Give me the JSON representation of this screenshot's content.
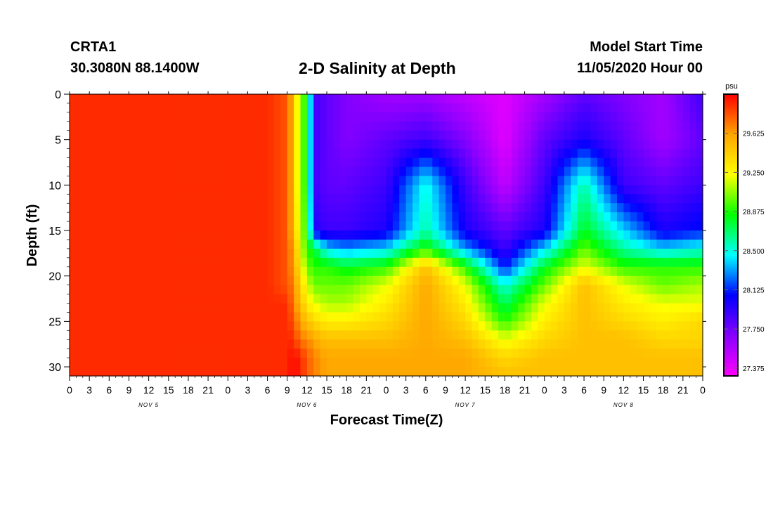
{
  "header": {
    "station_id": "CRTA1",
    "station_coords": "30.3080N 88.1400W",
    "title": "2-D Salinity at Depth",
    "model_start_label": "Model Start Time",
    "model_start_value": "11/05/2020 Hour 00"
  },
  "chart_data": {
    "type": "heatmap",
    "title": "2-D Salinity at Depth",
    "xlabel": "Forecast Time(Z)",
    "ylabel": "Depth (ft)",
    "x_tick_labels": [
      "0",
      "3",
      "6",
      "9",
      "12",
      "15",
      "18",
      "21",
      "0",
      "3",
      "6",
      "9",
      "12",
      "15",
      "18",
      "21",
      "0",
      "3",
      "6",
      "9",
      "12",
      "15",
      "18",
      "21",
      "0",
      "3",
      "6",
      "9",
      "12",
      "15",
      "18",
      "21",
      "0"
    ],
    "day_labels": [
      {
        "label": "NOV 5",
        "hour": 12
      },
      {
        "label": "NOV 6",
        "hour": 36
      },
      {
        "label": "NOV 7",
        "hour": 60
      },
      {
        "label": "NOV 8",
        "hour": 84
      }
    ],
    "xlim": [
      0,
      96
    ],
    "ylim": [
      0,
      31
    ],
    "y_ticks": [
      0,
      5,
      10,
      15,
      20,
      25,
      30
    ],
    "y_reversed": true,
    "grid": false,
    "colorbar": {
      "unit": "psu",
      "tick_labels": [
        "29.625",
        "29.250",
        "28.875",
        "28.500",
        "28.125",
        "27.750",
        "27.375"
      ],
      "tick_values": [
        29.625,
        29.25,
        28.875,
        28.5,
        28.125,
        27.75,
        27.375
      ],
      "range": [
        27.3,
        30.0
      ],
      "colors": [
        "#ff00ff",
        "#8800ff",
        "#0000ff",
        "#00ffff",
        "#00ff00",
        "#ffff00",
        "#ffa500",
        "#ff0000"
      ]
    },
    "depth_levels_ft": [
      0,
      5,
      10,
      15,
      17,
      19,
      21,
      23,
      25,
      27,
      29,
      31
    ],
    "time_hours": [
      0,
      6,
      12,
      18,
      24,
      30,
      33,
      34,
      35,
      36,
      37,
      39,
      42,
      48,
      54,
      60,
      66,
      72,
      78,
      84,
      90,
      96
    ],
    "salinity_psu": [
      [
        29.9,
        29.9,
        29.9,
        29.9,
        29.9,
        29.9,
        29.8,
        29.5,
        29.0,
        28.9,
        27.9,
        27.8,
        27.7,
        27.6,
        27.6,
        27.5,
        27.4,
        27.6,
        27.8,
        27.7,
        27.6,
        27.9
      ],
      [
        29.9,
        29.9,
        29.9,
        29.9,
        29.9,
        29.9,
        29.8,
        29.5,
        29.0,
        28.9,
        27.9,
        27.8,
        27.7,
        27.8,
        27.9,
        27.7,
        27.4,
        27.8,
        28.0,
        27.8,
        27.6,
        27.8
      ],
      [
        29.9,
        29.9,
        29.9,
        29.9,
        29.9,
        29.9,
        29.8,
        29.5,
        29.0,
        28.9,
        27.9,
        27.8,
        27.8,
        27.9,
        28.5,
        27.9,
        27.5,
        27.9,
        28.6,
        27.9,
        27.8,
        27.9
      ],
      [
        29.9,
        29.9,
        29.9,
        29.9,
        29.9,
        29.9,
        29.8,
        29.5,
        29.1,
        28.9,
        28.0,
        27.9,
        27.9,
        28.0,
        28.6,
        28.0,
        27.8,
        28.0,
        28.8,
        28.4,
        28.0,
        28.1
      ],
      [
        29.9,
        29.9,
        29.9,
        29.9,
        29.9,
        29.9,
        29.8,
        29.6,
        29.2,
        28.9,
        28.8,
        28.4,
        28.3,
        28.4,
        28.9,
        28.3,
        27.9,
        28.4,
        29.0,
        28.6,
        28.4,
        28.5
      ],
      [
        29.9,
        29.9,
        29.9,
        29.9,
        29.9,
        29.9,
        29.8,
        29.6,
        29.3,
        29.0,
        28.9,
        28.9,
        28.8,
        28.9,
        29.5,
        28.9,
        28.1,
        28.8,
        29.2,
        28.9,
        28.9,
        28.9
      ],
      [
        29.9,
        29.9,
        29.9,
        29.9,
        29.9,
        29.9,
        29.8,
        29.7,
        29.4,
        29.2,
        29.0,
        29.0,
        29.0,
        29.2,
        29.6,
        29.2,
        28.5,
        29.0,
        29.5,
        29.2,
        29.0,
        29.1
      ],
      [
        29.9,
        29.9,
        29.9,
        29.9,
        29.9,
        29.9,
        29.9,
        29.7,
        29.5,
        29.3,
        29.2,
        29.1,
        29.1,
        29.3,
        29.6,
        29.3,
        28.7,
        29.2,
        29.5,
        29.3,
        29.2,
        29.2
      ],
      [
        29.9,
        29.9,
        29.9,
        29.9,
        29.9,
        29.9,
        29.9,
        29.8,
        29.6,
        29.5,
        29.4,
        29.3,
        29.3,
        29.4,
        29.6,
        29.4,
        28.9,
        29.3,
        29.5,
        29.4,
        29.3,
        29.4
      ],
      [
        29.9,
        29.9,
        29.9,
        29.9,
        29.9,
        29.9,
        29.9,
        29.9,
        29.7,
        29.7,
        29.6,
        29.5,
        29.5,
        29.5,
        29.6,
        29.5,
        29.2,
        29.4,
        29.5,
        29.5,
        29.4,
        29.4
      ],
      [
        29.9,
        29.9,
        29.9,
        29.9,
        29.9,
        29.9,
        29.9,
        30.0,
        29.9,
        29.8,
        29.7,
        29.6,
        29.6,
        29.6,
        29.6,
        29.6,
        29.4,
        29.5,
        29.5,
        29.5,
        29.5,
        29.5
      ],
      [
        29.9,
        29.9,
        29.9,
        29.9,
        29.9,
        29.9,
        29.9,
        30.0,
        29.9,
        29.8,
        29.7,
        29.6,
        29.6,
        29.6,
        29.6,
        29.6,
        29.5,
        29.5,
        29.5,
        29.5,
        29.5,
        29.5
      ]
    ]
  }
}
